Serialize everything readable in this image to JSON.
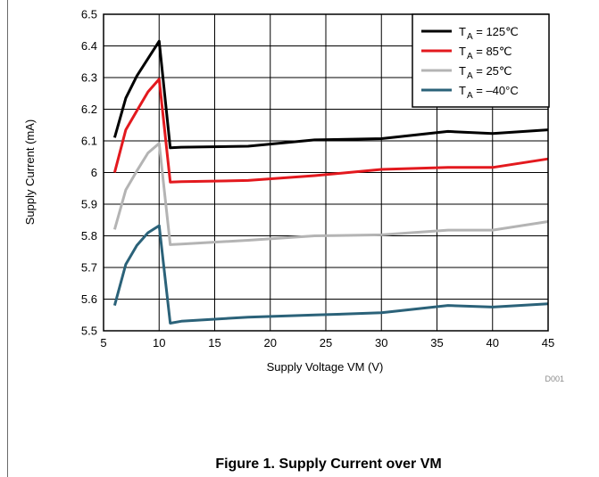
{
  "chart_data": {
    "type": "line",
    "xlabel": "Supply Voltage VM (V)",
    "ylabel": "Supply Current (mA)",
    "xlim": [
      5,
      45
    ],
    "ylim": [
      5.5,
      6.5
    ],
    "xticks": [
      5,
      10,
      15,
      20,
      25,
      30,
      35,
      40,
      45
    ],
    "yticks": [
      5.5,
      5.6,
      5.7,
      5.8,
      5.9,
      6.0,
      6.1,
      6.2,
      6.3,
      6.4,
      6.5
    ],
    "xtick_labels": [
      "5",
      "10",
      "15",
      "20",
      "25",
      "30",
      "35",
      "40",
      "45"
    ],
    "ytick_labels": [
      "5.5",
      "5.6",
      "5.7",
      "5.8",
      "5.9",
      "6",
      "6.1",
      "6.2",
      "6.3",
      "6.4",
      "6.5"
    ],
    "grid": true,
    "legend_position": "top-right",
    "series": [
      {
        "name": "T A = 125°C",
        "legend_main": "T",
        "legend_sub": "A",
        "legend_rest": " = 125℃",
        "color": "#000000",
        "x": [
          6,
          7,
          8,
          9,
          10,
          11,
          12,
          18,
          24,
          30,
          36,
          40,
          45
        ],
        "y": [
          6.11,
          6.235,
          6.305,
          6.36,
          6.415,
          6.078,
          6.08,
          6.083,
          6.103,
          6.107,
          6.13,
          6.123,
          6.135
        ]
      },
      {
        "name": "T A = 85°C",
        "legend_main": "T",
        "legend_sub": "A",
        "legend_rest": " = 85℃",
        "color": "#e3191e",
        "x": [
          6,
          7,
          8,
          9,
          10,
          11,
          12,
          18,
          24,
          30,
          36,
          40,
          45
        ],
        "y": [
          6.0,
          6.135,
          6.195,
          6.255,
          6.295,
          5.97,
          5.971,
          5.975,
          5.99,
          6.01,
          6.016,
          6.016,
          6.043
        ]
      },
      {
        "name": "T A = 25°C",
        "legend_main": "T",
        "legend_sub": "A",
        "legend_rest": " = 25℃",
        "color": "#b4b4b4",
        "x": [
          6,
          7,
          8,
          9,
          10,
          11,
          12,
          18,
          24,
          30,
          36,
          40,
          45
        ],
        "y": [
          5.82,
          5.945,
          6.005,
          6.062,
          6.092,
          5.772,
          5.774,
          5.786,
          5.8,
          5.803,
          5.818,
          5.818,
          5.845
        ]
      },
      {
        "name": "T A = –40°C",
        "legend_main": "T",
        "legend_sub": "A",
        "legend_rest": " = –40°C",
        "color": "#2b6279",
        "x": [
          6,
          7,
          8,
          9,
          10,
          11,
          12,
          18,
          24,
          30,
          36,
          40,
          45
        ],
        "y": [
          5.58,
          5.71,
          5.77,
          5.81,
          5.832,
          5.524,
          5.53,
          5.543,
          5.55,
          5.557,
          5.58,
          5.575,
          5.585
        ]
      }
    ],
    "annotation": "D001",
    "figure_caption": "Figure 1. Supply Current over VM"
  }
}
